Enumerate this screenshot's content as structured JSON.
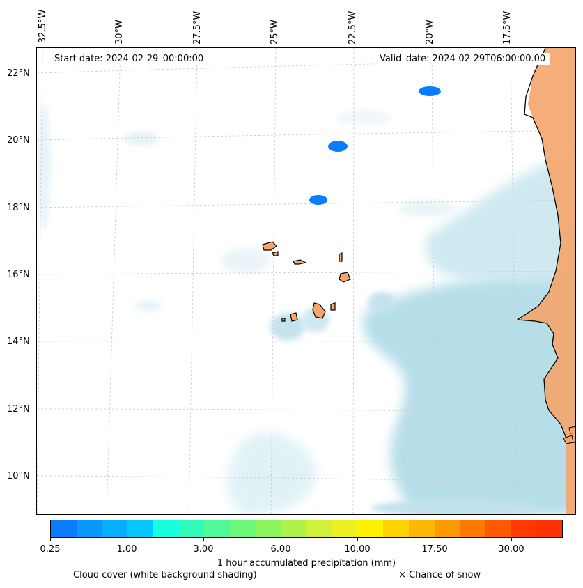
{
  "header": {
    "start_date": "Start date: 2024-02-29_00:00:00",
    "valid_date": "Valid_date: 2024-02-29T06:00:00.00"
  },
  "longitude_labels": [
    "32.5°W",
    "30°W",
    "27.5°W",
    "25°W",
    "22.5°W",
    "20°W",
    "17.5°W"
  ],
  "latitude_labels": [
    "22°N",
    "20°N",
    "18°N",
    "16°N",
    "14°N",
    "12°N",
    "10°N"
  ],
  "colorbar": {
    "title": "1 hour accumulated precipitation (mm)",
    "tick_labels": [
      "0.25",
      "1.00",
      "3.00",
      "6.00",
      "10.00",
      "17.50",
      "30.00"
    ],
    "colors": [
      "#0a7cff",
      "#0896ff",
      "#06afff",
      "#04c8ff",
      "#17ffe0",
      "#2ffbbb",
      "#4ef99a",
      "#6cf77a",
      "#8cf55e",
      "#aef24a",
      "#d0f03a",
      "#ecf020",
      "#fff200",
      "#ffd400",
      "#ffb800",
      "#ff9a00",
      "#ff7a00",
      "#ff5a00",
      "#ff3a00",
      "#ff3000"
    ]
  },
  "legend": {
    "cloud_cover": "Cloud cover (white background shading)",
    "snow": "× Chance of snow"
  },
  "map": {
    "ocean_cloud_color": "#a9d8e6",
    "land_color": "#f4a56a",
    "precip_color": "#0a7cff"
  }
}
